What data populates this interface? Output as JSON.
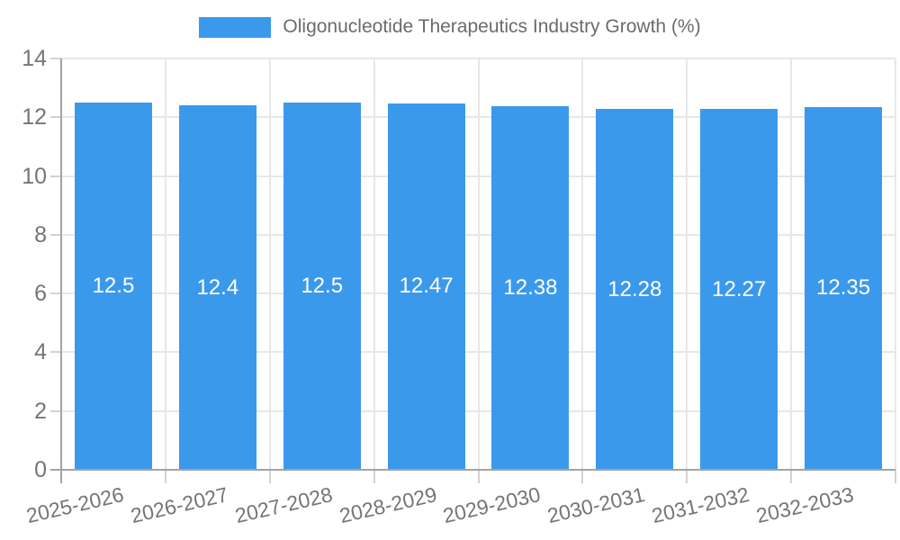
{
  "chart_data": {
    "type": "bar",
    "title": "Oligonucleotide Therapeutics Industry Growth (%)",
    "categories": [
      "2025-2026",
      "2026-2027",
      "2027-2028",
      "2028-2029",
      "2029-2030",
      "2030-2031",
      "2031-2032",
      "2032-2033"
    ],
    "series": [
      {
        "name": "Oligonucleotide Therapeutics Industry Growth (%)",
        "values": [
          12.5,
          12.4,
          12.5,
          12.47,
          12.38,
          12.28,
          12.27,
          12.35
        ],
        "value_labels": [
          "12.5",
          "12.4",
          "12.5",
          "12.47",
          "12.38",
          "12.28",
          "12.27",
          "12.35"
        ]
      }
    ],
    "xlabel": "",
    "ylabel": "",
    "ylim": [
      0,
      14
    ],
    "yticks": [
      0,
      2,
      4,
      6,
      8,
      10,
      12,
      14
    ],
    "grid": true,
    "legend_position": "top",
    "bar_color": "#3b99ec",
    "bar_label_color": "#ffffff"
  },
  "style": {
    "grid_color": "#e7e7e7",
    "axis_color": "#a3a3a3",
    "tick_color": "#d2d2d2",
    "tick_label_color": "#757575",
    "legend_text_color": "#6b6b6b",
    "background_color": "#ffffff",
    "x_label_rotation_deg": -13
  }
}
